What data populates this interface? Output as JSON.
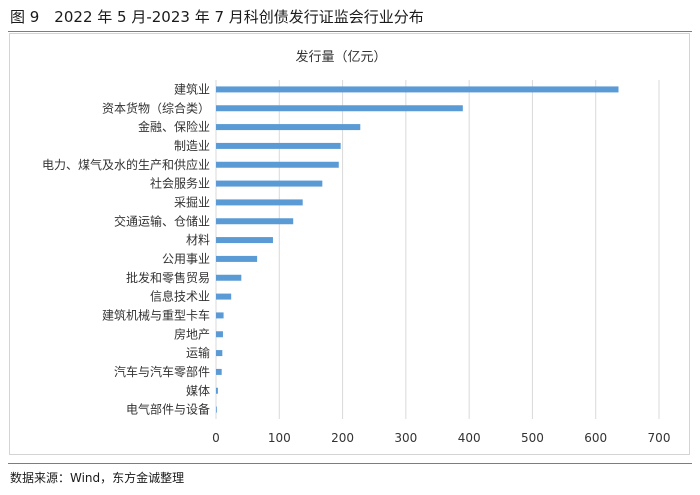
{
  "figure": {
    "title": "图 9　2022 年 5 月-2023 年 7 月科创债发行证监会行业分布",
    "source": "数据来源：Wind，东方金诚整理"
  },
  "chart_data": {
    "type": "bar",
    "orientation": "horizontal",
    "title": "发行量（亿元）",
    "categories": [
      "建筑业",
      "资本货物（综合类）",
      "金融、保险业",
      "制造业",
      "电力、煤气及水的生产和供应业",
      "社会服务业",
      "采掘业",
      "交通运输、仓储业",
      "材料",
      "公用事业",
      "批发和零售贸易",
      "信息技术业",
      "建筑机械与重型卡车",
      "房地产",
      "运输",
      "汽车与汽车零部件",
      "媒体",
      "电气部件与设备"
    ],
    "values": [
      636,
      390,
      228,
      197,
      194,
      168,
      137,
      122,
      90,
      65,
      40,
      24,
      12,
      11,
      10,
      9,
      3,
      1
    ],
    "xlim": [
      0,
      700
    ],
    "xticks": [
      0,
      100,
      200,
      300,
      400,
      500,
      600,
      700
    ],
    "grid": "vertical",
    "legend": "none",
    "colors": {
      "bar": "#5b9bd5",
      "grid": "#d9d9d9",
      "text": "#333333"
    }
  }
}
